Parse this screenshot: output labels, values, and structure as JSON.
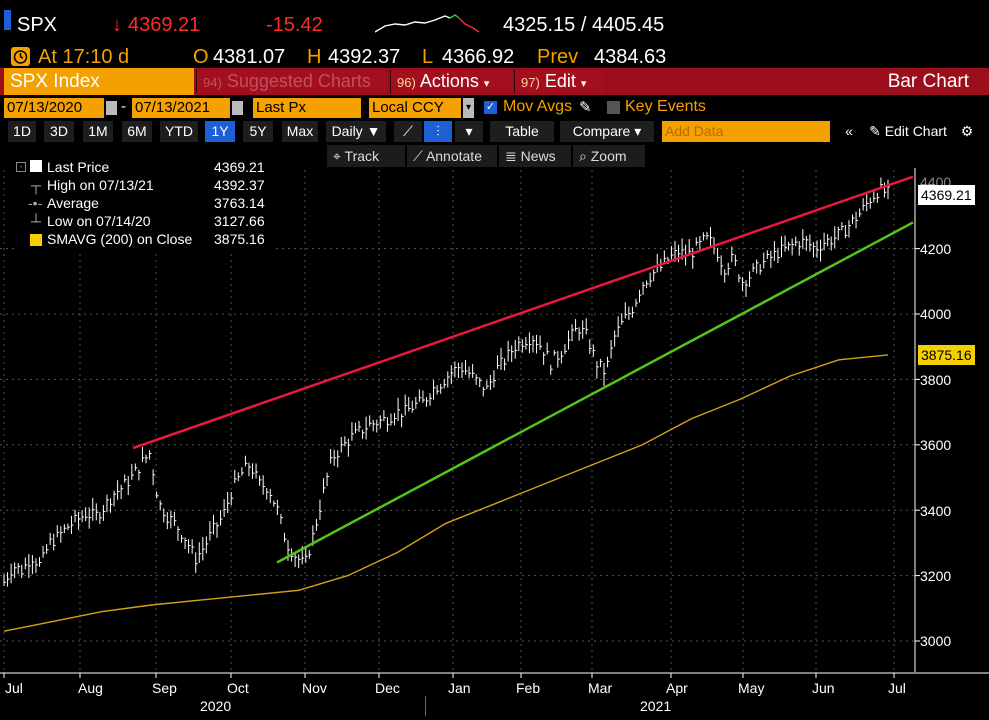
{
  "header": {
    "ticker": "SPX",
    "price": "4369.21",
    "price_arrow": "↓",
    "change": "-15.42",
    "bid_ask": "4325.15 / 4405.45",
    "time_label": "At 17:10 d",
    "open_label": "O",
    "open": "4381.07",
    "high_label": "H",
    "high": "4392.37",
    "low_label": "L",
    "low": "4366.92",
    "prev_label": "Prev",
    "prev": "4384.63"
  },
  "menubar": {
    "security": "SPX Index",
    "suggested_num": "94)",
    "suggested": "Suggested Charts",
    "actions_num": "96)",
    "actions": "Actions",
    "edit_num": "97)",
    "edit": "Edit",
    "chart_type": "Bar Chart"
  },
  "daterow": {
    "start": "07/13/2020",
    "sep": "-",
    "end": "07/13/2021",
    "field": "Last Px",
    "currency": "Local CCY",
    "mov_avgs": "Mov Avgs",
    "key_events": "Key Events"
  },
  "timeframes": [
    "1D",
    "3D",
    "1M",
    "6M",
    "YTD",
    "1Y",
    "5Y",
    "Max"
  ],
  "selected_timeframe": "1Y",
  "toolbar": {
    "period": "Daily",
    "table": "Table",
    "compare": "Compare",
    "add_data_placeholder": "Add Data",
    "edit_chart": "Edit Chart"
  },
  "chart_tools": [
    "Track",
    "Annotate",
    "News",
    "Zoom"
  ],
  "legend": [
    {
      "label": "Last Price",
      "value": "4369.21"
    },
    {
      "label": "High on 07/13/21",
      "value": "4392.37"
    },
    {
      "label": "Average",
      "value": "3763.14"
    },
    {
      "label": "Low on 07/14/20",
      "value": "3127.66"
    },
    {
      "label": "SMAVG (200)  on Close",
      "value": "3875.16"
    }
  ],
  "colors": {
    "accent_orange": "#f4a000",
    "menu_red": "#9c0e1c",
    "down_red": "#ff2a2a",
    "resistance_line": "#e8193c",
    "support_line": "#52c41a",
    "sma_line": "#d4a017",
    "selected_blue": "#1f5fd6"
  },
  "chart_data": {
    "type": "line",
    "title": "",
    "xlabel": "",
    "ylabel": "",
    "ylim": [
      2950,
      4450
    ],
    "y_ticks": [
      3000,
      3200,
      3400,
      3600,
      3800,
      4000,
      4200,
      4400
    ],
    "x_ticks": [
      "Jul",
      "Aug",
      "Sep",
      "Oct",
      "Nov",
      "Dec",
      "Jan",
      "Feb",
      "Mar",
      "Apr",
      "May",
      "Jun",
      "Jul"
    ],
    "year_labels": [
      "2020",
      "2021"
    ],
    "price_label": "4369.21",
    "sma_label": "3875.16",
    "series": [
      {
        "name": "SPX",
        "values": [
          3180,
          3230,
          3215,
          3260,
          3230,
          3300,
          3320,
          3350,
          3370,
          3390,
          3380,
          3410,
          3450,
          3470,
          3500,
          3540,
          3575,
          3420,
          3380,
          3350,
          3310,
          3250,
          3290,
          3340,
          3380,
          3460,
          3510,
          3540,
          3480,
          3470,
          3400,
          3300,
          3260,
          3230,
          3330,
          3450,
          3560,
          3590,
          3620,
          3640,
          3660,
          3670,
          3680,
          3700,
          3700,
          3720,
          3730,
          3770,
          3790,
          3820,
          3840,
          3820,
          3790,
          3770,
          3830,
          3860,
          3900,
          3920,
          3930,
          3900,
          3850,
          3880,
          3920,
          3960,
          3930,
          3850,
          3820,
          3930,
          3980,
          4020,
          4090,
          4120,
          4140,
          4170,
          4190,
          4180,
          4200,
          4230,
          4210,
          4140,
          4170,
          4100,
          4120,
          4150,
          4170,
          4190,
          4200,
          4220,
          4220,
          4200,
          4220,
          4230,
          4250,
          4280,
          4310,
          4350,
          4380,
          4369
        ]
      },
      {
        "name": "SMAVG (200)",
        "values": [
          3030,
          3060,
          3090,
          3110,
          3125,
          3140,
          3155,
          3200,
          3270,
          3360,
          3420,
          3480,
          3540,
          3600,
          3680,
          3740,
          3810,
          3860,
          3875
        ]
      },
      {
        "name": "",
        "values": [
          3590,
          4420
        ]
      },
      {
        "name": "",
        "values": [
          3240,
          4280
        ]
      }
    ]
  }
}
